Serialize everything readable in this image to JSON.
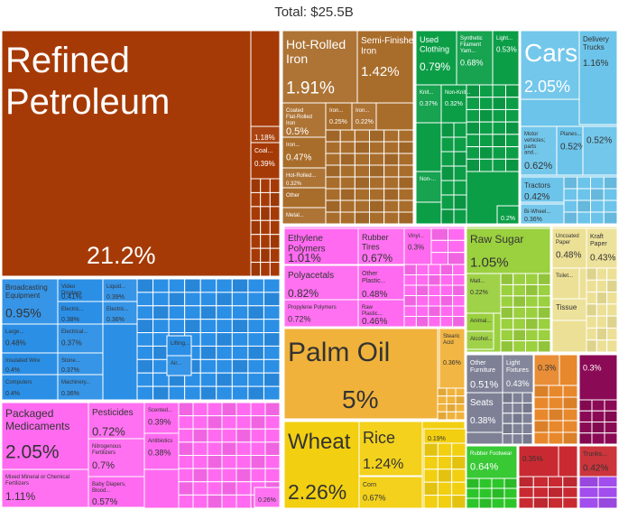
{
  "title": "Total: $25.5B",
  "chart_data": {
    "type": "treemap",
    "title": "Total: $25.5B",
    "total": "$25.5B",
    "value_unit": "% of total",
    "colors": {
      "mineral": "#a63a06",
      "metals": "#a96d2b",
      "textiles": "#0b9e47",
      "transport": "#6cc4ea",
      "chemicals": "#ff6af0",
      "machinery": "#2b8fe6",
      "vegetable": "#9bd03f",
      "paper": "#ece096",
      "fats": "#f0b23a",
      "food": "#f2cf10",
      "instruments": "#7e8196",
      "misc": "#e8882c",
      "footwear": "#2dc62a",
      "arts": "#8b0a55",
      "other": "#c92a32",
      "stone": "#ad1f6f",
      "animal": "#a02018",
      "purple": "#a24ded",
      "green": "#57d66a"
    },
    "items": [
      {
        "name": "Refined Petroleum",
        "value": "21.2%",
        "group": "mineral"
      },
      {
        "name": "",
        "value": "1.18%",
        "group": "mineral"
      },
      {
        "name": "Coal...",
        "value": "0.39%",
        "group": "mineral"
      },
      {
        "name": "Hot-Rolled Iron",
        "value": "1.91%",
        "group": "metals"
      },
      {
        "name": "Semi-Finished Iron",
        "value": "1.42%",
        "group": "metals"
      },
      {
        "name": "Coated Flat-Rolled Iron",
        "value": "0.5%",
        "group": "metals"
      },
      {
        "name": "Iron...",
        "value": "0.25%",
        "group": "metals"
      },
      {
        "name": "Iron...",
        "value": "0.22%",
        "group": "metals"
      },
      {
        "name": "Iron...",
        "value": "0.47%",
        "group": "metals"
      },
      {
        "name": "Hot-Rolled...",
        "value": "0.32%",
        "group": "metals"
      },
      {
        "name": "Other Iron...",
        "value": "",
        "group": "metals"
      },
      {
        "name": "Metal...",
        "value": "",
        "group": "metals"
      },
      {
        "name": "Used Clothing",
        "value": "0.79%",
        "group": "textiles"
      },
      {
        "name": "Synthetic Filament Yarn...",
        "value": "0.68%",
        "group": "textiles"
      },
      {
        "name": "Light...",
        "value": "0.53%",
        "group": "textiles"
      },
      {
        "name": "Knit...",
        "value": "0.37%",
        "group": "textiles"
      },
      {
        "name": "Non-Knit...",
        "value": "0.32%",
        "group": "textiles"
      },
      {
        "name": "Non-...",
        "value": "",
        "group": "textiles"
      },
      {
        "name": "",
        "value": "0.2%",
        "group": "textiles"
      },
      {
        "name": "Cars",
        "value": "2.05%",
        "group": "transport"
      },
      {
        "name": "Delivery Trucks",
        "value": "1.16%",
        "group": "transport"
      },
      {
        "name": "Motor vehicles; parts and...",
        "value": "0.62%",
        "group": "transport"
      },
      {
        "name": "Planes...",
        "value": "0.52%",
        "group": "transport"
      },
      {
        "name": "",
        "value": "0.52%",
        "group": "transport"
      },
      {
        "name": "Tractors",
        "value": "0.42%",
        "group": "transport"
      },
      {
        "name": "Bi-Wheel...",
        "value": "0.36%",
        "group": "transport"
      },
      {
        "name": "Ethylene Polymers",
        "value": "1.01%",
        "group": "chemicals"
      },
      {
        "name": "Rubber Tires",
        "value": "0.67%",
        "group": "chemicals"
      },
      {
        "name": "Vinyl...",
        "value": "0.3%",
        "group": "chemicals"
      },
      {
        "name": "Polyacetals",
        "value": "0.82%",
        "group": "chemicals"
      },
      {
        "name": "Other Plastic...",
        "value": "0.48%",
        "group": "chemicals"
      },
      {
        "name": "Propylene Polymers",
        "value": "0.72%",
        "group": "chemicals"
      },
      {
        "name": "Raw Plastic...",
        "value": "0.46%",
        "group": "chemicals"
      },
      {
        "name": "Broadcasting Equipment",
        "value": "0.95%",
        "group": "machinery"
      },
      {
        "name": "Video Displays",
        "value": "0.41%",
        "group": "machinery"
      },
      {
        "name": "Liquid...",
        "value": "0.39%",
        "group": "machinery"
      },
      {
        "name": "Electric...",
        "value": "0.38%",
        "group": "machinery"
      },
      {
        "name": "Electric...",
        "value": "0.36%",
        "group": "machinery"
      },
      {
        "name": "Large...",
        "value": "0.48%",
        "group": "machinery"
      },
      {
        "name": "Electrical...",
        "value": "0.37%",
        "group": "machinery"
      },
      {
        "name": "Insulated Wire",
        "value": "0.4%",
        "group": "machinery"
      },
      {
        "name": "Stone...",
        "value": "0.37%",
        "group": "machinery"
      },
      {
        "name": "Computers",
        "value": "0.4%",
        "group": "machinery"
      },
      {
        "name": "Machinery...",
        "value": "0.36%",
        "group": "machinery"
      },
      {
        "name": "Lifting...",
        "value": "",
        "group": "machinery"
      },
      {
        "name": "Air...",
        "value": "",
        "group": "machinery"
      },
      {
        "name": "Packaged Medicaments",
        "value": "2.05%",
        "group": "chemicals"
      },
      {
        "name": "Pesticides",
        "value": "0.72%",
        "group": "chemicals"
      },
      {
        "name": "Scented...",
        "value": "0.39%",
        "group": "chemicals"
      },
      {
        "name": "Nitrogenous Fertilizers",
        "value": "0.7%",
        "group": "chemicals"
      },
      {
        "name": "Antibiotics",
        "value": "0.38%",
        "group": "chemicals"
      },
      {
        "name": "Mixed Mineral or Chemical Fertilizers",
        "value": "1.11%",
        "group": "chemicals"
      },
      {
        "name": "Baby Diapers, Blood...",
        "value": "0.57%",
        "group": "chemicals"
      },
      {
        "name": "",
        "value": "0.26%",
        "group": "chemicals"
      },
      {
        "name": "Raw Sugar",
        "value": "1.05%",
        "group": "vegetable"
      },
      {
        "name": "Malt...",
        "value": "0.22%",
        "group": "vegetable"
      },
      {
        "name": "Animal...",
        "value": "",
        "group": "vegetable"
      },
      {
        "name": "Alcohol...",
        "value": "",
        "group": "vegetable"
      },
      {
        "name": "Uncoated Paper",
        "value": "0.48%",
        "group": "paper"
      },
      {
        "name": "Kraft Paper",
        "value": "0.43%",
        "group": "paper"
      },
      {
        "name": "Toilet...",
        "value": "",
        "group": "paper"
      },
      {
        "name": "Tissue",
        "value": "",
        "group": "paper"
      },
      {
        "name": "Palm Oil",
        "value": "5%",
        "group": "fats"
      },
      {
        "name": "Stearic Acid",
        "value": "0.36%",
        "group": "fats"
      },
      {
        "name": "Wheat",
        "value": "2.26%",
        "group": "food"
      },
      {
        "name": "Rice",
        "value": "1.24%",
        "group": "food"
      },
      {
        "name": "",
        "value": "0.19%",
        "group": "food"
      },
      {
        "name": "Corn",
        "value": "0.67%",
        "group": "food"
      },
      {
        "name": "Other Furniture",
        "value": "0.51%",
        "group": "instruments"
      },
      {
        "name": "Light Fixtures",
        "value": "0.43%",
        "group": "instruments"
      },
      {
        "name": "Seats",
        "value": "0.38%",
        "group": "instruments"
      },
      {
        "name": "",
        "value": "0.3%",
        "group": "misc"
      },
      {
        "name": "",
        "value": "0.3%",
        "group": "arts"
      },
      {
        "name": "Rubber Footwear",
        "value": "0.64%",
        "group": "footwear"
      },
      {
        "name": "",
        "value": "0.35%",
        "group": "other"
      },
      {
        "name": "Trunks...",
        "value": "0.42%",
        "group": "other"
      }
    ]
  }
}
